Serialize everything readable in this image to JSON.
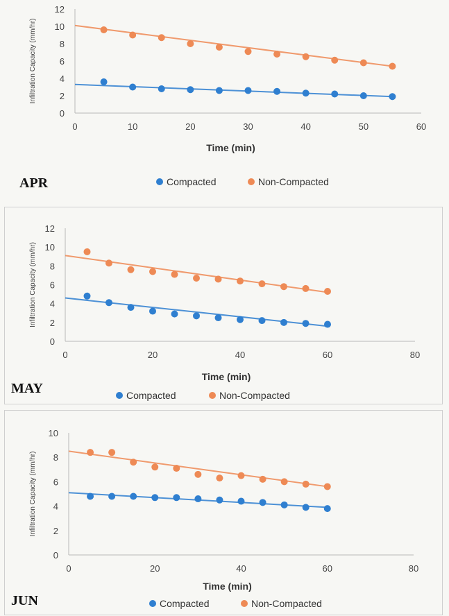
{
  "colors": {
    "compacted": "#2f7fd0",
    "non_compacted": "#ee8a55",
    "axis": "#b8b8b8"
  },
  "chart_data": [
    {
      "type": "scatter",
      "month": "APR",
      "xlabel": "Time (min)",
      "ylabel": "Infiltration Capacity (mm/hr)",
      "xlim": [
        0,
        60
      ],
      "ylim": [
        0,
        12
      ],
      "xticks": [
        "0",
        "10",
        "20",
        "30",
        "40",
        "50",
        "60"
      ],
      "yticks": [
        "0",
        "2",
        "4",
        "6",
        "8",
        "10",
        "12"
      ],
      "legend_position": "bottom",
      "grid": false,
      "series": [
        {
          "name": "Compacted",
          "x": [
            5,
            10,
            15,
            20,
            25,
            30,
            35,
            40,
            45,
            50,
            55
          ],
          "y": [
            3.6,
            3.0,
            2.8,
            2.7,
            2.6,
            2.6,
            2.5,
            2.3,
            2.2,
            2.0,
            1.9
          ],
          "trendline": [
            [
              0,
              3.3
            ],
            [
              55,
              1.9
            ]
          ]
        },
        {
          "name": "Non-Compacted",
          "x": [
            5,
            10,
            15,
            20,
            25,
            30,
            35,
            40,
            45,
            50,
            55
          ],
          "y": [
            9.6,
            9.0,
            8.7,
            8.0,
            7.6,
            7.1,
            6.8,
            6.5,
            6.1,
            5.8,
            5.4
          ],
          "trendline": [
            [
              0,
              10.1
            ],
            [
              55,
              5.4
            ]
          ]
        }
      ]
    },
    {
      "type": "scatter",
      "month": "MAY",
      "xlabel": "Time (min)",
      "ylabel": "Infiltration Capacity (mm/hr)",
      "xlim": [
        0,
        80
      ],
      "ylim": [
        0,
        12
      ],
      "xticks": [
        "0",
        "20",
        "40",
        "60",
        "80"
      ],
      "yticks": [
        "0",
        "2",
        "4",
        "6",
        "8",
        "10",
        "12"
      ],
      "legend_position": "bottom",
      "grid": false,
      "series": [
        {
          "name": "Compacted",
          "x": [
            5,
            10,
            15,
            20,
            25,
            30,
            35,
            40,
            45,
            50,
            55,
            60
          ],
          "y": [
            4.8,
            4.1,
            3.6,
            3.2,
            2.9,
            2.7,
            2.5,
            2.3,
            2.2,
            2.0,
            1.9,
            1.8
          ],
          "trendline": [
            [
              0,
              4.6
            ],
            [
              60,
              1.6
            ]
          ]
        },
        {
          "name": "Non-Compacted",
          "x": [
            5,
            10,
            15,
            20,
            25,
            30,
            35,
            40,
            45,
            50,
            55,
            60
          ],
          "y": [
            9.5,
            8.3,
            7.6,
            7.4,
            7.1,
            6.7,
            6.6,
            6.4,
            6.1,
            5.8,
            5.6,
            5.3
          ],
          "trendline": [
            [
              0,
              9.1
            ],
            [
              60,
              5.2
            ]
          ]
        }
      ]
    },
    {
      "type": "scatter",
      "month": "JUN",
      "xlabel": "Time (min)",
      "ylabel": "Infiltration Capacity (mm/hr)",
      "xlim": [
        0,
        80
      ],
      "ylim": [
        0,
        10
      ],
      "xticks": [
        "0",
        "20",
        "40",
        "60",
        "80"
      ],
      "yticks": [
        "0",
        "2",
        "4",
        "6",
        "8",
        "10"
      ],
      "legend_position": "bottom",
      "grid": false,
      "series": [
        {
          "name": "Compacted",
          "x": [
            5,
            10,
            15,
            20,
            25,
            30,
            35,
            40,
            45,
            50,
            55,
            60
          ],
          "y": [
            4.8,
            4.8,
            4.8,
            4.7,
            4.7,
            4.6,
            4.5,
            4.4,
            4.3,
            4.1,
            3.9,
            3.8
          ],
          "trendline": [
            [
              0,
              5.1
            ],
            [
              60,
              3.9
            ]
          ]
        },
        {
          "name": "Non-Compacted",
          "x": [
            5,
            10,
            15,
            20,
            25,
            30,
            35,
            40,
            45,
            50,
            55,
            60
          ],
          "y": [
            8.4,
            8.4,
            7.6,
            7.2,
            7.1,
            6.6,
            6.3,
            6.5,
            6.2,
            6.0,
            5.8,
            5.6
          ],
          "trendline": [
            [
              0,
              8.5
            ],
            [
              60,
              5.6
            ]
          ]
        }
      ]
    }
  ]
}
